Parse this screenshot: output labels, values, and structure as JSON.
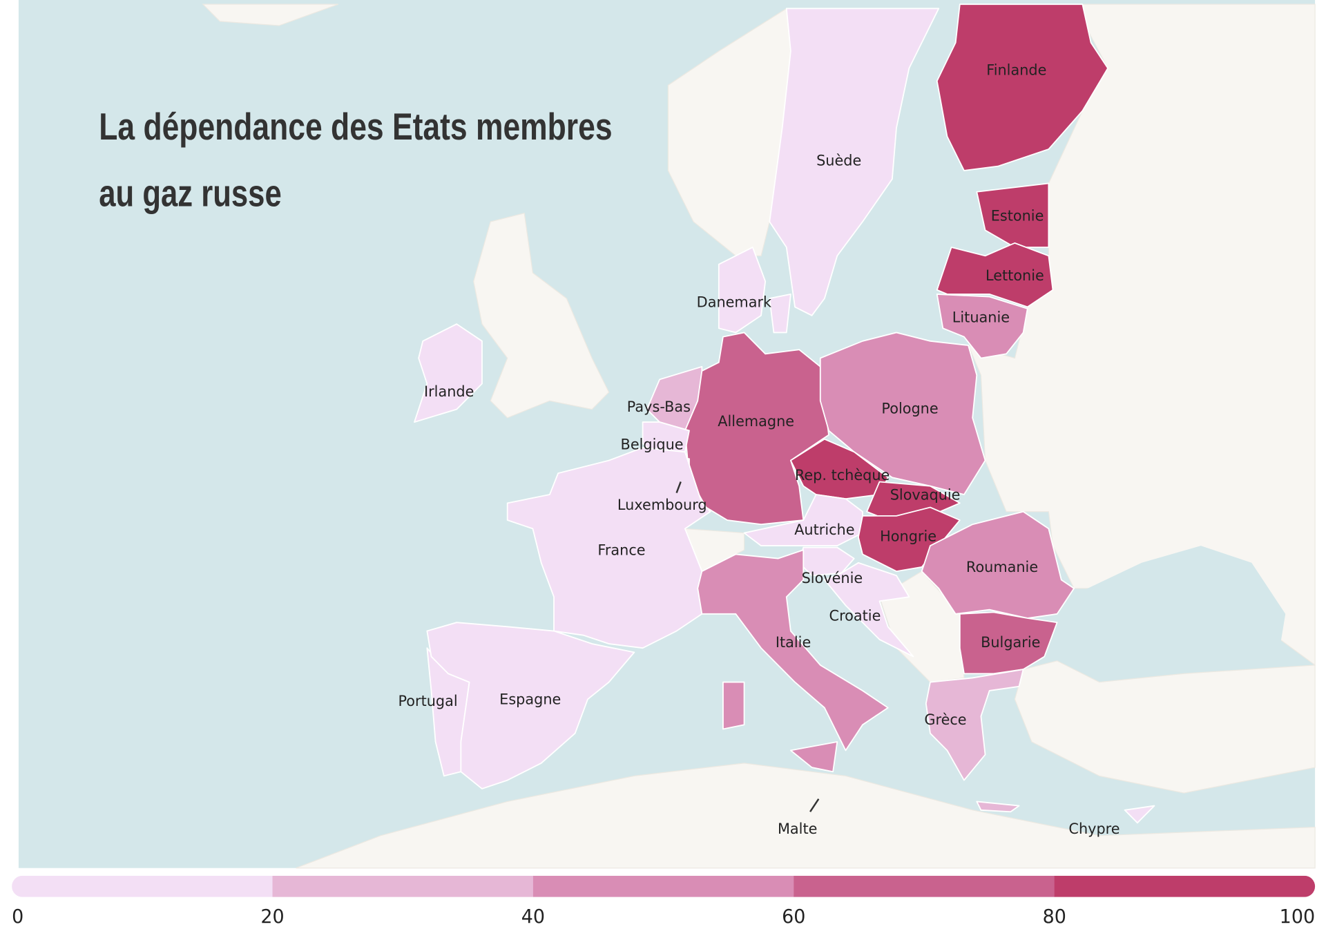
{
  "title": [
    "La dépendance des Etats membres",
    "au gaz russe"
  ],
  "legend": {
    "range": [
      0,
      100
    ],
    "ticks": [
      0,
      20,
      40,
      60,
      80,
      100
    ],
    "colors": [
      "#f3dff5",
      "#e6b7d6",
      "#d98db5",
      "#c9628e",
      "#be3d6a"
    ]
  },
  "countries": [
    {
      "name": "Finlande",
      "color": "#be3d6a"
    },
    {
      "name": "Suède",
      "color": "#f3dff5"
    },
    {
      "name": "Estonie",
      "color": "#be3d6a"
    },
    {
      "name": "Lettonie",
      "color": "#be3d6a"
    },
    {
      "name": "Lituanie",
      "color": "#d98db5"
    },
    {
      "name": "Danemark",
      "color": "#f3dff5"
    },
    {
      "name": "Irlande",
      "color": "#f3dff5"
    },
    {
      "name": "Pays-Bas",
      "color": "#e6b7d6"
    },
    {
      "name": "Allemagne",
      "color": "#c9628e"
    },
    {
      "name": "Pologne",
      "color": "#d98db5"
    },
    {
      "name": "Belgique",
      "color": "#f3dff5"
    },
    {
      "name": "Rep. tchèque",
      "color": "#be3d6a"
    },
    {
      "name": "Slovaquie",
      "color": "#be3d6a"
    },
    {
      "name": "Luxembourg",
      "color": "#f3dff5"
    },
    {
      "name": "Autriche",
      "color": "#f3dff5"
    },
    {
      "name": "Hongrie",
      "color": "#be3d6a"
    },
    {
      "name": "France",
      "color": "#f3dff5"
    },
    {
      "name": "Roumanie",
      "color": "#d98db5"
    },
    {
      "name": "Slovénie",
      "color": "#f3dff5"
    },
    {
      "name": "Croatie",
      "color": "#f3dff5"
    },
    {
      "name": "Italie",
      "color": "#d98db5"
    },
    {
      "name": "Bulgarie",
      "color": "#c9628e"
    },
    {
      "name": "Portugal",
      "color": "#f3dff5"
    },
    {
      "name": "Espagne",
      "color": "#f3dff5"
    },
    {
      "name": "Grèce",
      "color": "#e6b7d6"
    },
    {
      "name": "Malte"
    },
    {
      "name": "Chypre",
      "color": "#f3dff5"
    }
  ]
}
